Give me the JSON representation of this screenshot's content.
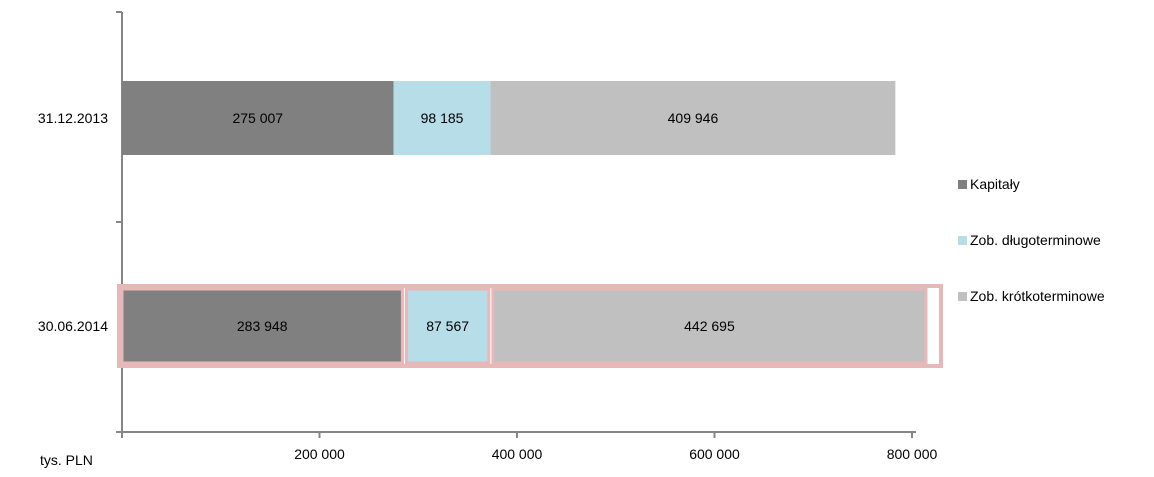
{
  "chart_data": {
    "type": "bar",
    "orientation": "horizontal",
    "stacked": true,
    "categories": [
      "31.12.2013",
      "30.06.2014"
    ],
    "series": [
      {
        "name": "Kapitały",
        "color": "#808080",
        "values": [
          275007,
          283948
        ]
      },
      {
        "name": "Zob. długoterminowe",
        "color": "#b7dde8",
        "values": [
          98185,
          87567
        ]
      },
      {
        "name": "Zob. krótkoterminowe",
        "color": "#c0c0c0",
        "values": [
          409946,
          442695
        ]
      }
    ],
    "data_labels": [
      [
        "275 007",
        "283 948"
      ],
      [
        "98 185",
        "87 567"
      ],
      [
        "409 946",
        "442 695"
      ]
    ],
    "x_ticks": [
      0,
      200000,
      400000,
      600000,
      800000
    ],
    "x_tick_labels": [
      "",
      "200 000",
      "400 000",
      "600 000",
      "800 000"
    ],
    "xlim": [
      0,
      800000
    ],
    "xlabel": "tys. PLN",
    "highlighted_category": "30.06.2014",
    "highlight_color": "#e6b8b7",
    "legend_position": "right",
    "grid": false
  }
}
